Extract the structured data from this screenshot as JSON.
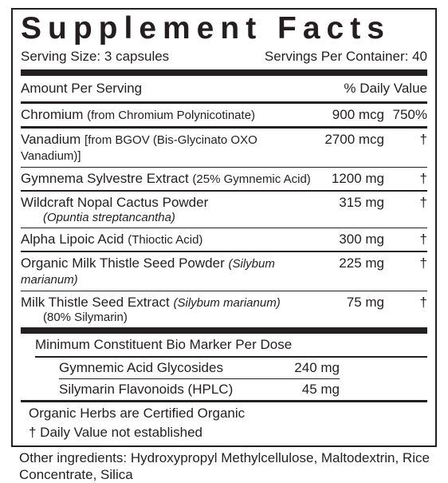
{
  "title": "Supplement Facts",
  "serving_size_label": "Serving Size:",
  "serving_size_value": "3 capsules",
  "servings_per_container_label": "Servings Per Container:",
  "servings_per_container_value": "40",
  "amount_per_serving_label": "Amount Per Serving",
  "daily_value_label": "% Daily Value",
  "ingredients": [
    {
      "name": "Chromium",
      "qualifier": "(from Chromium Polynicotinate)",
      "amount": "900 mcg",
      "dv": "750%"
    },
    {
      "name": "Vanadium",
      "qualifier": "[from BGOV (Bis-Glycinato OXO Vanadium)]",
      "amount": "2700 mcg",
      "dv": "†"
    },
    {
      "name": "Gymnema Sylvestre Extract",
      "qualifier": "(25% Gymnemic Acid)",
      "amount": "1200 mg",
      "dv": "†"
    },
    {
      "name": "Wildcraft Nopal Cactus Powder",
      "sub_ital": "(Opuntia streptancantha)",
      "amount": "315 mg",
      "dv": "†"
    },
    {
      "name": "Alpha Lipoic Acid",
      "qualifier": "(Thioctic Acid)",
      "amount": "300 mg",
      "dv": "†"
    },
    {
      "name": "Organic Milk Thistle Seed Powder",
      "qualifier_ital": "(Silybum marianum)",
      "amount": "225 mg",
      "dv": "†"
    },
    {
      "name": "Milk Thistle Seed Extract",
      "qualifier_ital": "(Silybum marianum)",
      "sub_plain": "(80% Silymarin)",
      "amount": "75 mg",
      "dv": "†"
    }
  ],
  "bio_marker_header": "Minimum Constituent Bio Marker Per Dose",
  "bio_markers": [
    {
      "name": "Gymnemic Acid Glycosides",
      "amount": "240 mg"
    },
    {
      "name": "Silymarin Flavonoids (HPLC)",
      "amount": "45 mg"
    }
  ],
  "notes": [
    "Organic Herbs are Certified Organic",
    "†  Daily Value not established"
  ],
  "other_ingredients": "Other ingredients: Hydroxypropyl Methylcellulose, Maltodextrin, Rice Concentrate, Silica",
  "colors": {
    "ink": "#231f20",
    "bg": "#ffffff"
  }
}
